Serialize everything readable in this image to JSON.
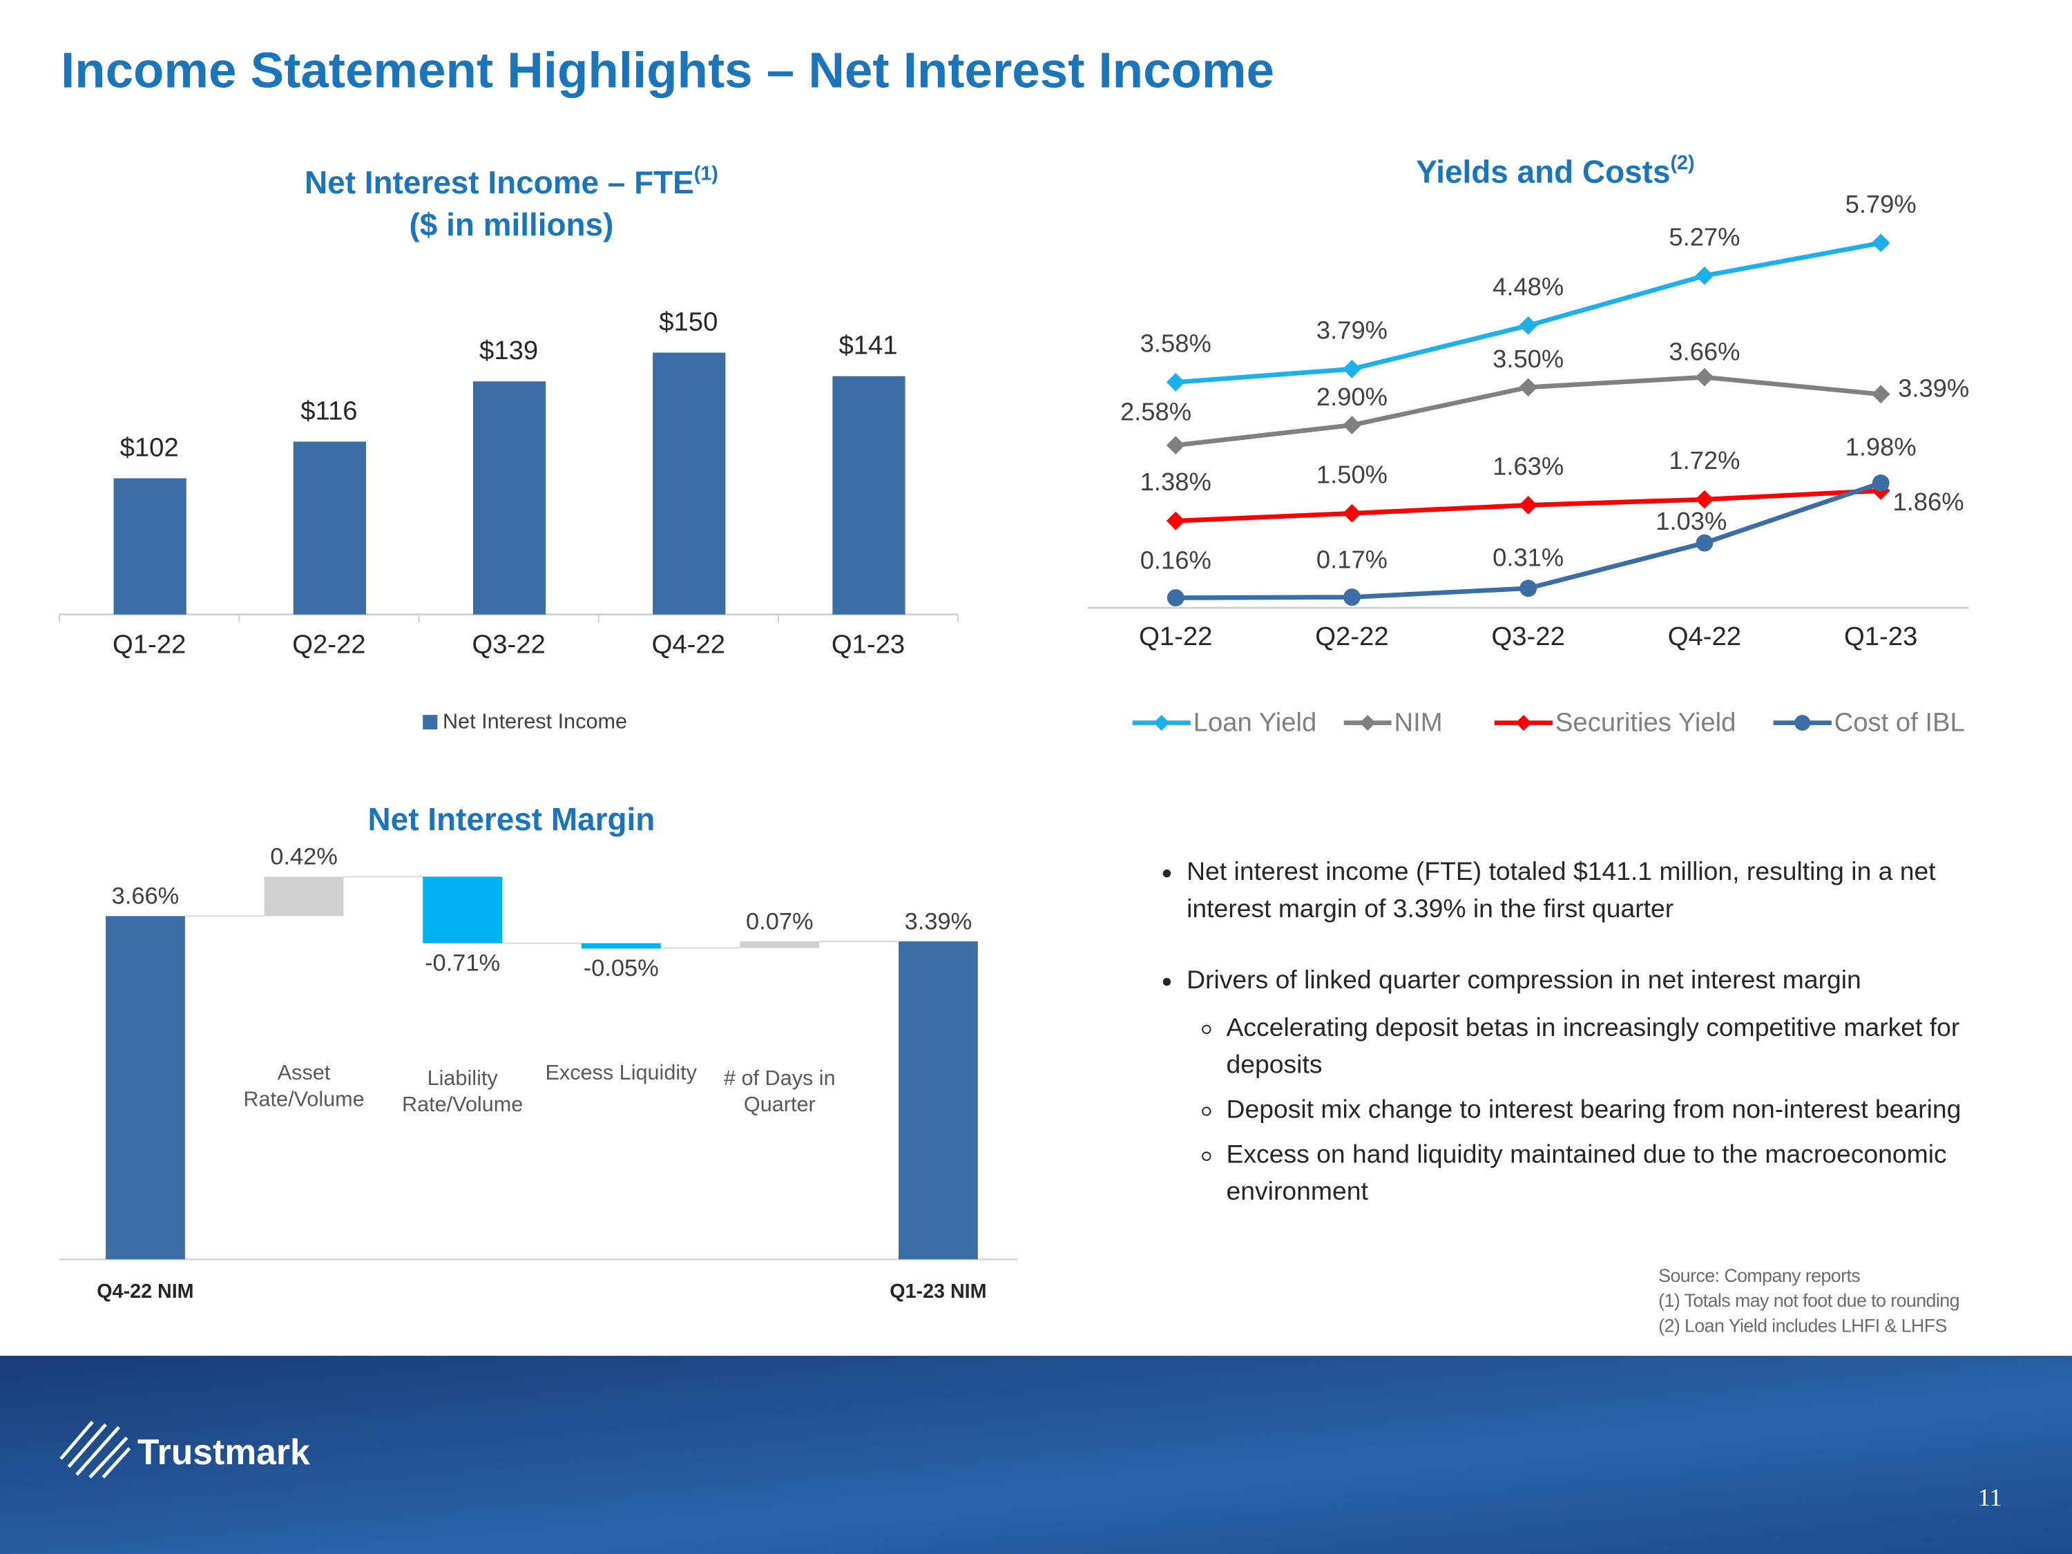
{
  "title": "Income Statement Highlights – Net Interest Income",
  "chart_data": [
    {
      "type": "bar",
      "title": "Net Interest Income – FTE",
      "title_note": "(1)",
      "subtitle": "($ in millions)",
      "categories": [
        "Q1-22",
        "Q2-22",
        "Q3-22",
        "Q4-22",
        "Q1-23"
      ],
      "series": [
        {
          "name": "Net Interest Income",
          "color": "#3a6ea5",
          "values": [
            102,
            116,
            139,
            150,
            141
          ],
          "value_labels": [
            "$102",
            "$116",
            "$139",
            "$150",
            "$141"
          ]
        }
      ],
      "ylim": [
        50,
        160
      ],
      "legend": "bottom"
    },
    {
      "type": "line",
      "title": "Yields and Costs",
      "title_note": "(2)",
      "categories": [
        "Q1-22",
        "Q2-22",
        "Q3-22",
        "Q4-22",
        "Q1-23"
      ],
      "series": [
        {
          "name": "Loan Yield",
          "color": "#1cb0ec",
          "marker": "diamond",
          "values": [
            3.58,
            3.79,
            4.48,
            5.27,
            5.79
          ],
          "value_labels": [
            "3.58%",
            "3.79%",
            "4.48%",
            "5.27%",
            "5.79%"
          ]
        },
        {
          "name": "NIM",
          "color": "#808080",
          "marker": "diamond",
          "values": [
            2.58,
            2.9,
            3.5,
            3.66,
            3.39
          ],
          "value_labels": [
            "2.58%",
            "2.90%",
            "3.50%",
            "3.66%",
            "3.39%"
          ]
        },
        {
          "name": "Securities Yield",
          "color": "#ff0000",
          "marker": "diamond",
          "values": [
            1.38,
            1.5,
            1.63,
            1.72,
            1.86
          ],
          "value_labels": [
            "1.38%",
            "1.50%",
            "1.63%",
            "1.72%",
            "1.86%"
          ]
        },
        {
          "name": "Cost of IBL",
          "color": "#3a6ea5",
          "marker": "circle",
          "values": [
            0.16,
            0.17,
            0.31,
            1.03,
            1.98
          ],
          "value_labels": [
            "0.16%",
            "0.17%",
            "0.31%",
            "1.03%",
            "1.98%"
          ]
        }
      ],
      "ylim": [
        0,
        6.5
      ],
      "legend": "bottom"
    },
    {
      "type": "waterfall",
      "title": "Net Interest Margin",
      "categories": [
        "Q4-22 NIM",
        "Asset Rate/Volume",
        "Liability Rate/Volume",
        "Excess Liquidity",
        "# of Days in Quarter",
        "Q1-23 NIM"
      ],
      "values": [
        3.66,
        0.42,
        -0.71,
        -0.05,
        0.07,
        3.39
      ],
      "value_labels": [
        "3.66%",
        "0.42%",
        "-0.71%",
        "-0.05%",
        "0.07%",
        "3.39%"
      ],
      "measure": [
        "total",
        "relative",
        "relative",
        "relative",
        "relative",
        "total"
      ],
      "colors": {
        "total": "#3a6ea5",
        "increase": "#d0d0d0",
        "decrease": "#00b0f0"
      },
      "ylim": [
        0,
        4.1
      ]
    }
  ],
  "bullets": [
    {
      "text": "Net interest income (FTE) totaled $141.1 million, resulting in a net interest margin of 3.39% in the first quarter",
      "sub": []
    },
    {
      "text": "Drivers of linked quarter compression in net interest margin",
      "sub": [
        "Accelerating deposit betas in increasingly competitive market for deposits",
        "Deposit mix change to interest bearing from non-interest bearing",
        "Excess on hand liquidity maintained due to the macroeconomic environment"
      ]
    }
  ],
  "notes": [
    "Source: Company reports",
    "(1) Totals may not foot due to rounding",
    "(2) Loan Yield  includes LHFI & LHFS"
  ],
  "logo": "Trustmark",
  "page_number": "11"
}
